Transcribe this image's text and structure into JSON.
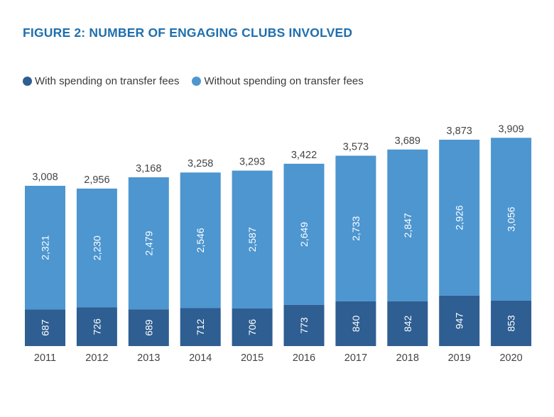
{
  "title": "FIGURE 2: NUMBER OF ENGAGING CLUBS INVOLVED",
  "colors": {
    "with_fees": "#2e5e92",
    "without_fees": "#4d96d0",
    "title": "#1f6fae"
  },
  "legend": {
    "with_fees": "With spending on transfer fees",
    "without_fees": "Without spending on transfer fees"
  },
  "chart_data": {
    "type": "bar",
    "stacked": true,
    "title": "FIGURE 2: NUMBER OF ENGAGING CLUBS INVOLVED",
    "xlabel": "",
    "ylabel": "",
    "ylim": [
      0,
      4200
    ],
    "grid": false,
    "legend_position": "top-left",
    "categories": [
      "2011",
      "2012",
      "2013",
      "2014",
      "2015",
      "2016",
      "2017",
      "2018",
      "2019",
      "2020"
    ],
    "series": [
      {
        "name": "With spending on transfer fees",
        "values": [
          687,
          726,
          689,
          712,
          706,
          773,
          840,
          842,
          947,
          853
        ]
      },
      {
        "name": "Without spending on transfer fees",
        "values": [
          2321,
          2230,
          2479,
          2546,
          2587,
          2649,
          2733,
          2847,
          2926,
          3056
        ]
      }
    ],
    "totals": [
      3008,
      2956,
      3168,
      3258,
      3293,
      3422,
      3573,
      3689,
      3873,
      3909
    ]
  }
}
